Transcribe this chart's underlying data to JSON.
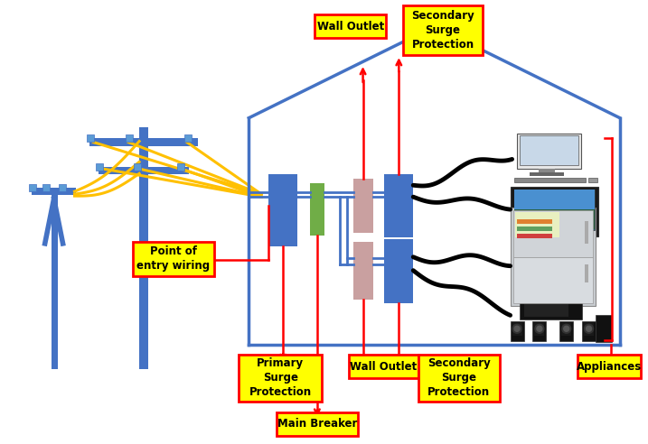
{
  "bg_color": "#ffffff",
  "house_color": "#4472C4",
  "pole_color": "#4472C4",
  "wire_color": "#FFC000",
  "red_color": "#FF0000",
  "blue_box_color": "#4472C4",
  "green_box_color": "#70AD47",
  "pink_box_color": "#C9A0A0",
  "label_bg": "#FFFF00",
  "label_border": "#FF0000",
  "label_text_color": "#000000",
  "wall_outlet_top_text": "Wall Outlet",
  "sec_surge_top_text": "Secondary\nSurge\nProtection",
  "point_entry_text": "Point of\nentry wiring",
  "primary_surge_text": "Primary\nSurge\nProtection",
  "wall_outlet_bot_text": "Wall Outlet",
  "sec_surge_bot_text": "Secondary\nSurge\nProtection",
  "main_breaker_text": "Main Breaker",
  "appliances_text": "Appliances"
}
